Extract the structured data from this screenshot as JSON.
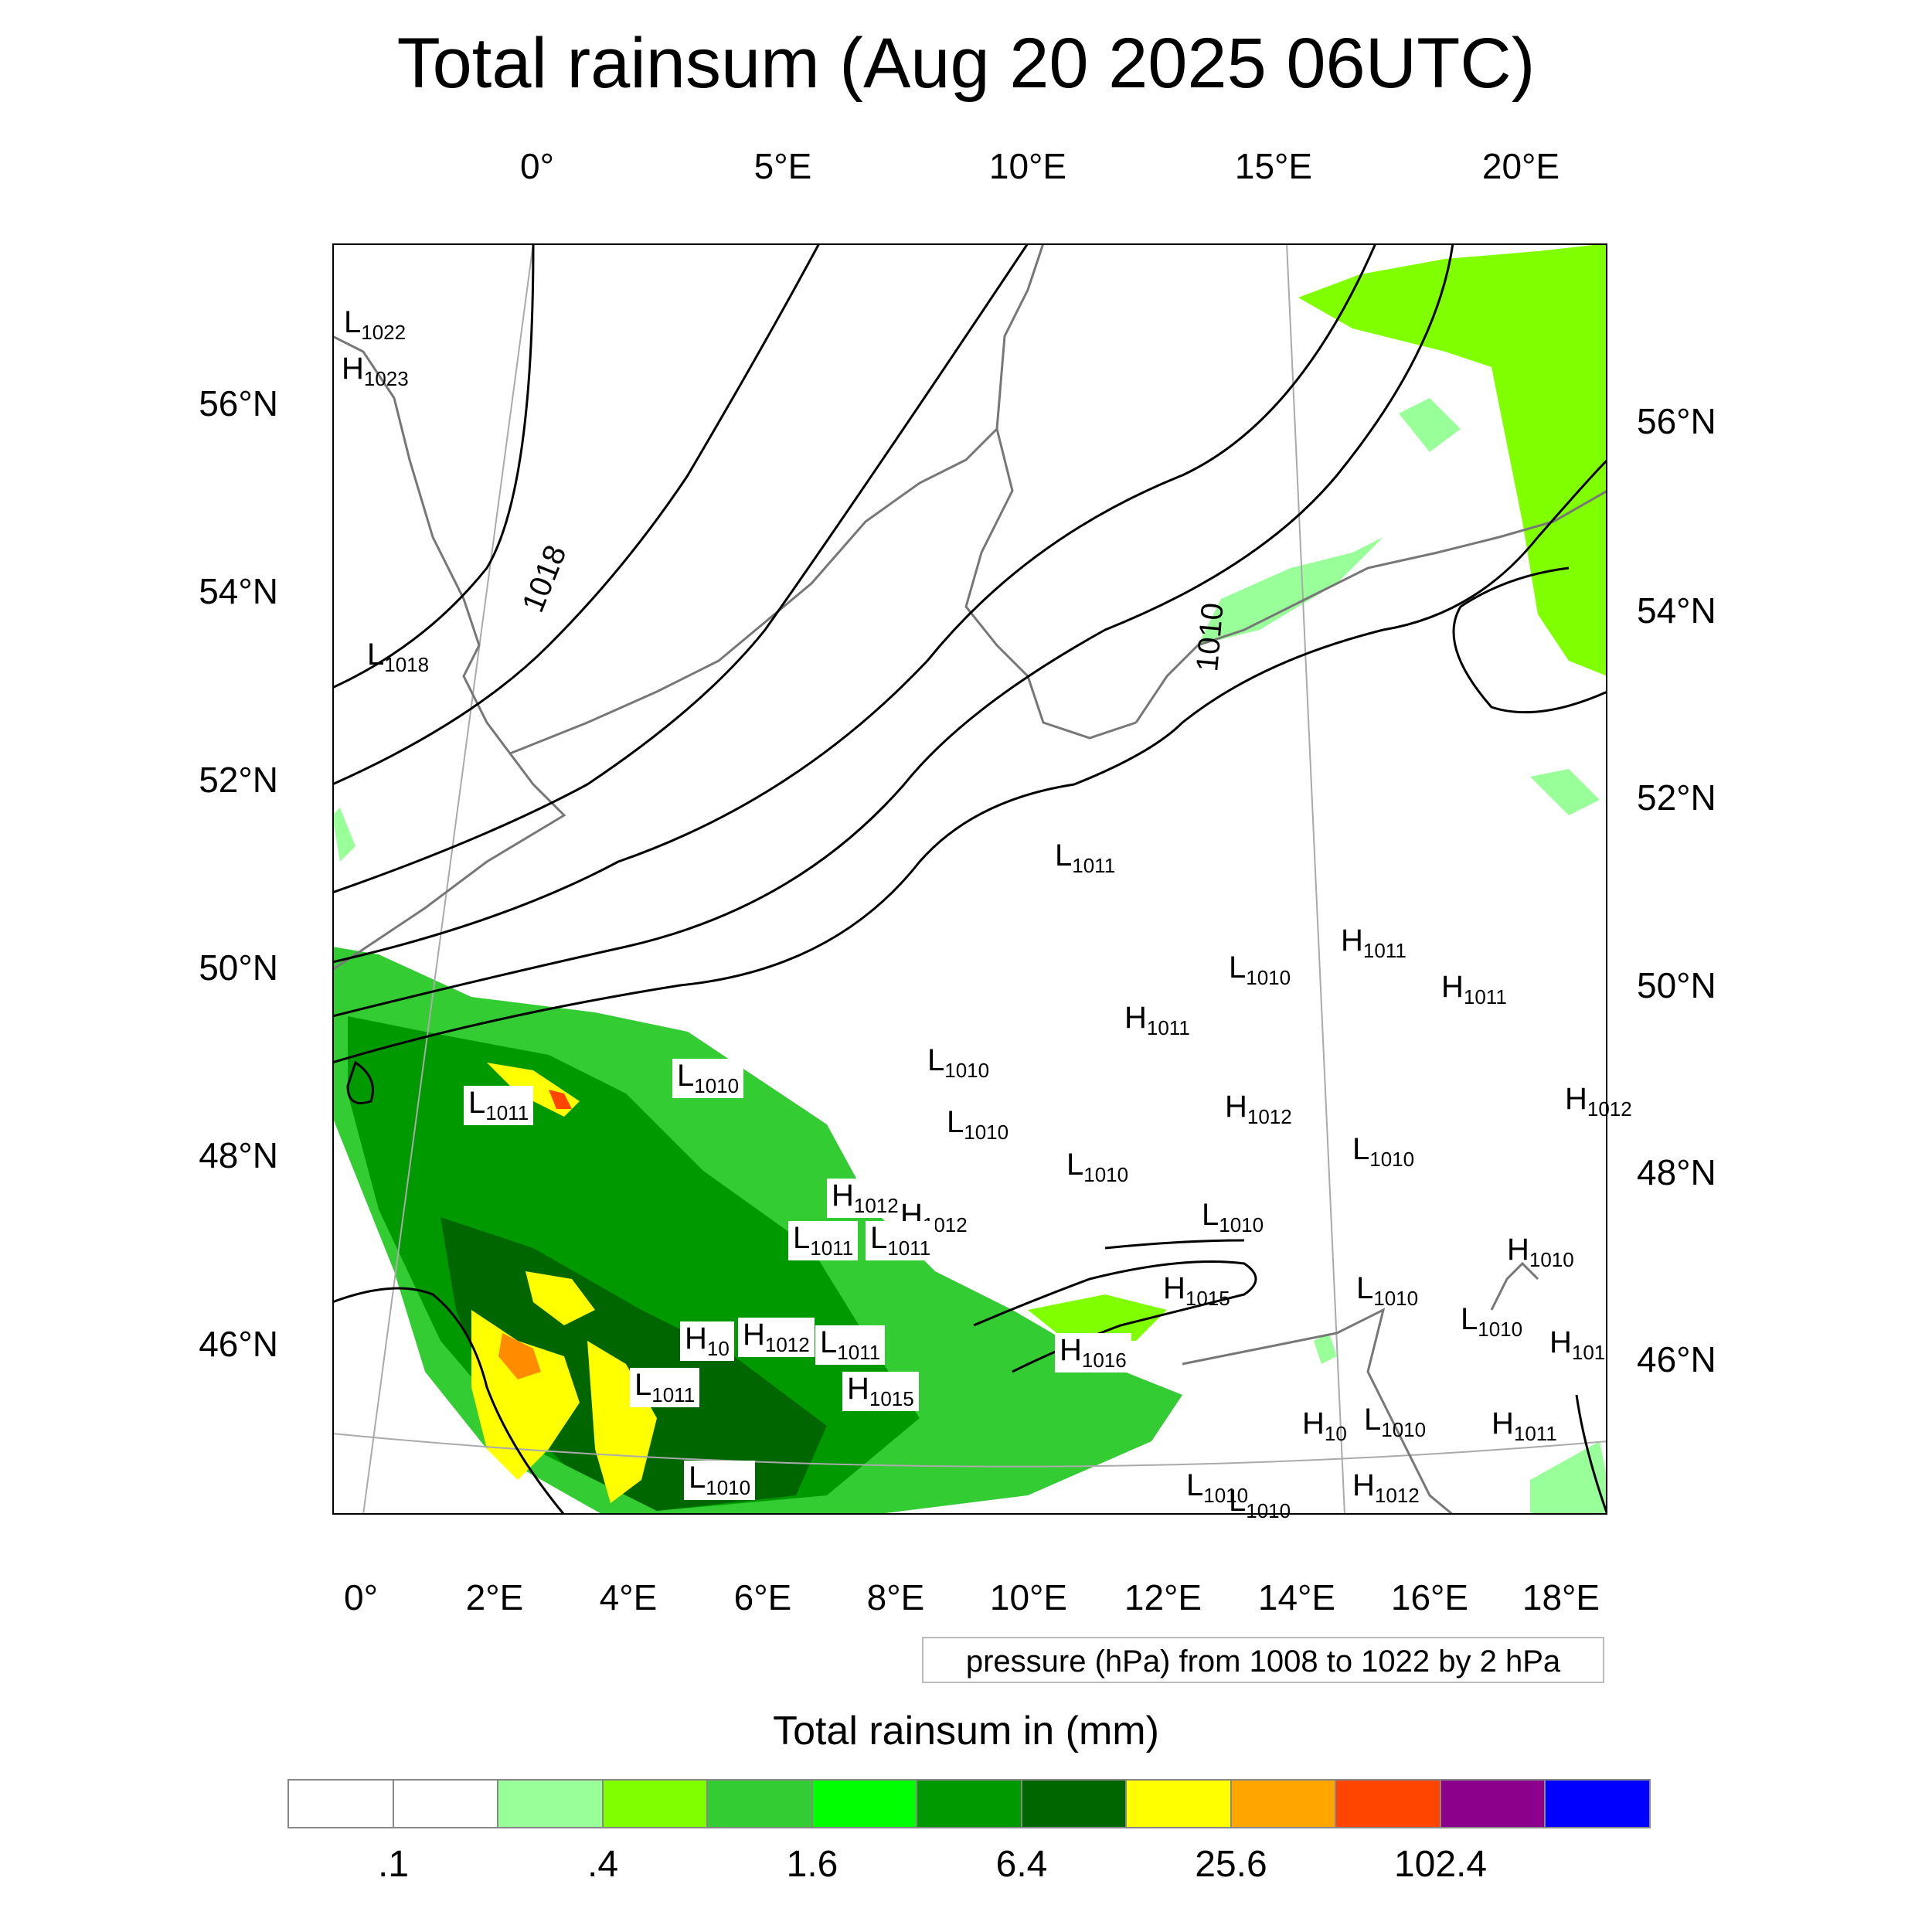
{
  "title": "Total rainsum (Aug 20 2025 06UTC)",
  "pressure_note": "pressure (hPa) from 1008 to 1022 by 2 hPa",
  "colorbar": {
    "title": "Total rainsum in (mm)",
    "colors": [
      "#ffffff",
      "#ffffff",
      "#99ff99",
      "#80ff00",
      "#33cc33",
      "#00ff00",
      "#009900",
      "#006600",
      "#ffff00",
      "#ffa500",
      "#ff4500",
      "#8b008b",
      "#0000ff"
    ],
    "tick_labels": [
      ".1",
      ".4",
      "1.6",
      "6.4",
      "25.6",
      "102.4"
    ]
  },
  "axes": {
    "top_lon": [
      "0°",
      "5°E",
      "10°E",
      "15°E",
      "20°E"
    ],
    "bottom_lon": [
      "0°",
      "2°E",
      "4°E",
      "6°E",
      "8°E",
      "10°E",
      "12°E",
      "14°E",
      "16°E",
      "18°E"
    ],
    "left_lat": [
      "56°N",
      "54°N",
      "52°N",
      "50°N",
      "48°N",
      "46°N"
    ],
    "right_lat": [
      "56°N",
      "54°N",
      "52°N",
      "50°N",
      "48°N",
      "46°N"
    ]
  },
  "contour_label": "1018",
  "contour_label_2": "1010",
  "pressure_centers": [
    {
      "type": "L",
      "value": "1022"
    },
    {
      "type": "H",
      "value": "1023"
    },
    {
      "type": "L",
      "value": "1018"
    },
    {
      "type": "L",
      "value": "1011"
    },
    {
      "type": "H",
      "value": "1011"
    },
    {
      "type": "H",
      "value": "1011"
    },
    {
      "type": "L",
      "value": "1010"
    },
    {
      "type": "H",
      "value": "1011"
    },
    {
      "type": "L",
      "value": "1010"
    },
    {
      "type": "L",
      "value": "1010"
    },
    {
      "type": "L",
      "value": "1011"
    },
    {
      "type": "H",
      "value": "1012"
    },
    {
      "type": "L",
      "value": "1010"
    },
    {
      "type": "L",
      "value": "1010"
    },
    {
      "type": "H",
      "value": "1012"
    },
    {
      "type": "H",
      "value": "1012"
    },
    {
      "type": "L",
      "value": "1011"
    },
    {
      "type": "L",
      "value": "1011"
    },
    {
      "type": "L",
      "value": "1010"
    },
    {
      "type": "H",
      "value": "1015"
    },
    {
      "type": "L",
      "value": "1010"
    },
    {
      "type": "H",
      "value": "1010"
    },
    {
      "type": "L",
      "value": "1010"
    },
    {
      "type": "H",
      "value": "10"
    },
    {
      "type": "H",
      "value": "1012"
    },
    {
      "type": "L",
      "value": "1011"
    },
    {
      "type": "L",
      "value": "1011"
    },
    {
      "type": "H",
      "value": "1015"
    },
    {
      "type": "H",
      "value": "1016"
    },
    {
      "type": "L",
      "value": "1010"
    },
    {
      "type": "L",
      "value": "1010"
    },
    {
      "type": "H",
      "value": "1011"
    },
    {
      "type": "L",
      "value": "1010"
    },
    {
      "type": "H",
      "value": "1012"
    },
    {
      "type": "H",
      "value": "1012"
    },
    {
      "type": "L",
      "value": "1010"
    },
    {
      "type": "H",
      "value": "10"
    },
    {
      "type": "H",
      "value": "101"
    },
    {
      "type": "L",
      "value": "1010"
    }
  ]
}
